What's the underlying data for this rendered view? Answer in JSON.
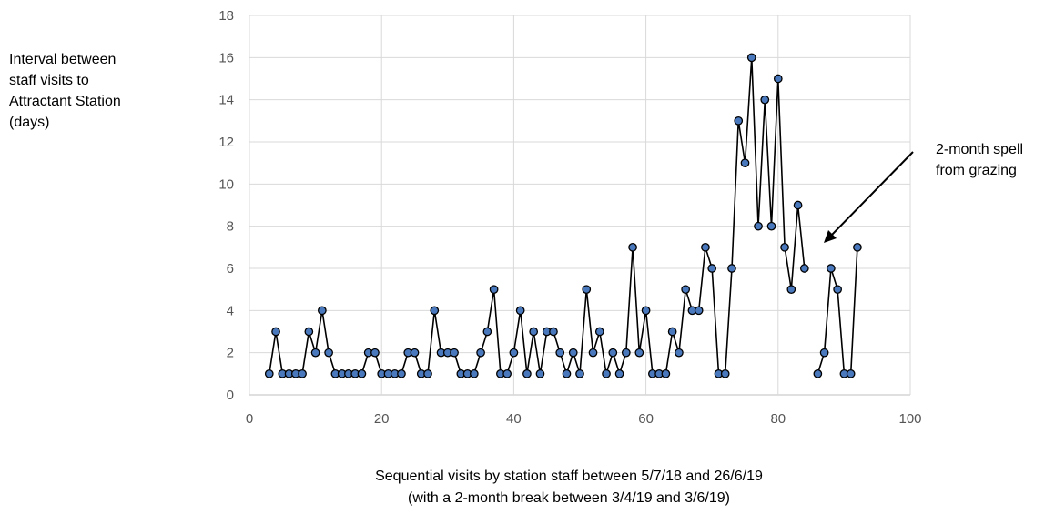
{
  "chart_data": {
    "type": "line",
    "xlabel": [
      "Sequential visits by station staff between 5/7/18 and 26/6/19",
      "(with a 2-month break between 3/4/19 and 3/6/19)"
    ],
    "ylabel": [
      "Interval between",
      "staff visits to",
      "Attractant Station",
      "(days)"
    ],
    "xlim": [
      0,
      100
    ],
    "ylim": [
      0,
      18
    ],
    "x_ticks": [
      "0",
      "20",
      "40",
      "60",
      "80",
      "100"
    ],
    "y_ticks": [
      "0",
      "2",
      "4",
      "6",
      "8",
      "10",
      "12",
      "14",
      "16",
      "18"
    ],
    "grid": true,
    "annotation": [
      "2-month spell",
      "from grazing"
    ],
    "series": [
      {
        "segments": [
          {
            "x": [
              3,
              4,
              5,
              6,
              7,
              8,
              9,
              10,
              11,
              12,
              13,
              14,
              15,
              16,
              17,
              18,
              19,
              20,
              21,
              22,
              23,
              24,
              25,
              26,
              27,
              28,
              29,
              30,
              31,
              32,
              33,
              34,
              35,
              36,
              37,
              38,
              39,
              40,
              41,
              42,
              43,
              44,
              45,
              46,
              47,
              48,
              49,
              50,
              51,
              52,
              53,
              54,
              55,
              56,
              57,
              58,
              59,
              60,
              61,
              62,
              63,
              64,
              65,
              66,
              67,
              68,
              69,
              70,
              71,
              72,
              73,
              74,
              75,
              76,
              77,
              78,
              79,
              80,
              81,
              82,
              83,
              84
            ],
            "y": [
              1,
              3,
              1,
              1,
              1,
              1,
              3,
              2,
              4,
              2,
              1,
              1,
              1,
              1,
              1,
              2,
              2,
              1,
              1,
              1,
              1,
              2,
              2,
              1,
              1,
              4,
              2,
              2,
              2,
              1,
              1,
              1,
              2,
              3,
              5,
              1,
              1,
              2,
              4,
              1,
              3,
              1,
              3,
              3,
              2,
              1,
              2,
              1,
              5,
              2,
              3,
              1,
              2,
              1,
              2,
              7,
              2,
              4,
              1,
              1,
              1,
              3,
              2,
              5,
              4,
              4,
              7,
              6,
              1,
              1,
              6,
              13,
              11,
              16,
              8,
              14,
              8,
              15,
              7,
              5,
              9,
              6
            ]
          },
          {
            "x": [
              86,
              87,
              88,
              89,
              90,
              91,
              92
            ],
            "y": [
              1,
              2,
              6,
              5,
              1,
              1,
              7
            ]
          }
        ]
      }
    ],
    "colors": {
      "marker_fill": "#4a78bd",
      "marker_stroke": "#000000",
      "line": "#000000",
      "grid": "#d9d9d9"
    }
  }
}
